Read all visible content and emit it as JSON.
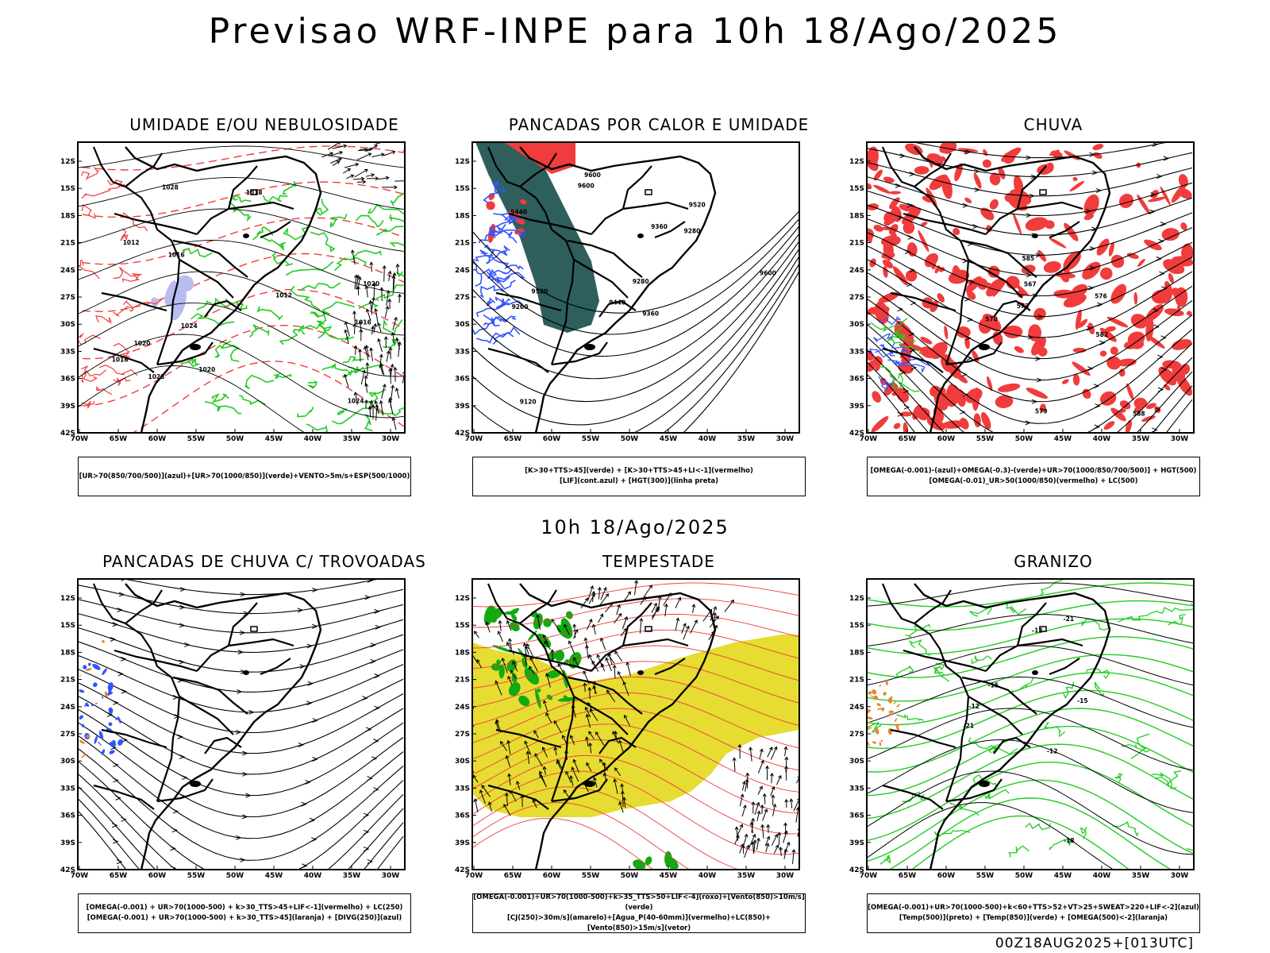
{
  "title": "Previsao WRF-INPE  para 10h 18/Ago/2025",
  "subtitle": "10h 18/Ago/2025",
  "footer": "00Z18AUG2025+[013UTC]",
  "lat_labels": [
    "12S",
    "15S",
    "18S",
    "21S",
    "24S",
    "27S",
    "30S",
    "33S",
    "36S",
    "39S",
    "42S"
  ],
  "lon_labels": [
    "70W",
    "65W",
    "60W",
    "55W",
    "50W",
    "45W",
    "40W",
    "35W",
    "30W"
  ],
  "colors": {
    "red": "#f03c3c",
    "green": "#22cc22",
    "dark_green": "#2e5f5c",
    "blue": "#3355ff",
    "lavender": "#b8bcf0",
    "yellow": "#e6dc32",
    "orange": "#e08830",
    "bright_green": "#11aa11"
  },
  "panels": [
    {
      "id": "umidade",
      "title": "UMIDADE E/OU NEBULOSIDADE",
      "legend": [
        "[UR>70(850/700/500)](azul)+[UR>70(1000/850)](verde)+VENTO>5m/s+ESP(500/1000)"
      ],
      "contour_labels": [
        "1016",
        "1020",
        "1012",
        "1020",
        "1016",
        "1020",
        "1024",
        "1024",
        "1028",
        "1028",
        "1018",
        "1016",
        "1012"
      ]
    },
    {
      "id": "pancadas-calor",
      "title": "PANCADAS POR CALOR E UMIDADE",
      "legend": [
        "[K>30+TTS>45](verde) + [K>30+TTS>45+LI<-1](vermelho)",
        "[LIF](cont.azul) + [HGT(300)](linha preta)"
      ],
      "contour_labels": [
        "9600",
        "9520",
        "9600",
        "9440",
        "9360",
        "9520",
        "9440",
        "9280",
        "9200",
        "9360",
        "9280",
        "9120",
        "9600"
      ]
    },
    {
      "id": "chuva",
      "title": "CHUVA",
      "legend": [
        "[OMEGA(-0.001)-(azul)+OMEGA(-0.3)-(verde)+UR>70(1000/850/700/500)] + HGT(500)",
        "[OMEGA(-0.01)_UR>50(1000/850)(vermelho) + LC(500)"
      ],
      "contour_labels": [
        "585",
        "588",
        "582",
        "579",
        "576",
        "573",
        "570",
        "567"
      ]
    },
    {
      "id": "pancadas-trovoadas",
      "title": "PANCADAS DE CHUVA C/ TROVOADAS",
      "legend": [
        "[OMEGA(-0.001) + UR>70(1000-500) + k>30_TTS>45+LIF<-1](vermelho) + LC(250)",
        "[OMEGA(-0.001) + UR>70(1000-500) + k>30_TTS>45](laranja) + [DIVG(250)](azul)"
      ],
      "contour_labels": []
    },
    {
      "id": "tempestade",
      "title": "TEMPESTADE",
      "legend": [
        "[OMEGA(-0.001)+UR>70(1000-500)+k>35_TTS>50+LIF<-4](roxo)+[Vento(850)>10m/s](verde)",
        "[CJ(250)>30m/s](amarelo)+[Agua_P(40-60mm)](vermelho)+LC(850)+[Vento(850)>15m/s](vetor)"
      ],
      "contour_labels": []
    },
    {
      "id": "granizo",
      "title": "GRANIZO",
      "legend": [
        "[OMEGA(-0.001)+UR>70(1000-500)+k<60+TTS>52+VT>25+SWEAT>220+LIF<-2](azul)",
        "[Temp(500)](preto) + [Temp(850)](verde) + [OMEGA(500)<-2](laranja)"
      ],
      "contour_labels": [
        "-12",
        "-12",
        "-15",
        "-12",
        "-21",
        "-18",
        "-21",
        "-15"
      ]
    }
  ]
}
